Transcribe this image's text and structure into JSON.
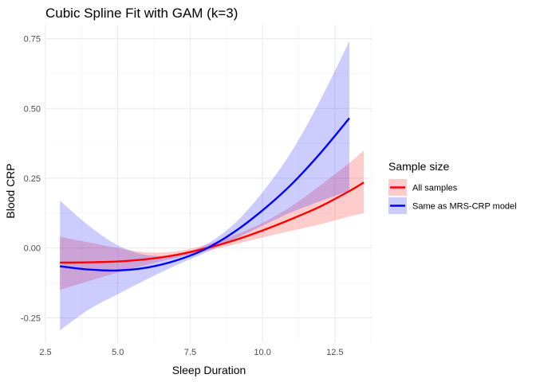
{
  "chart_data": {
    "type": "line",
    "title": "Cubic Spline Fit with GAM (k=3)",
    "xlabel": "Sleep Duration",
    "ylabel": "Blood CRP",
    "xlim": [
      2.5,
      13.8
    ],
    "ylim": [
      -0.34,
      0.8
    ],
    "x_ticks": [
      2.5,
      5.0,
      7.5,
      10.0,
      12.5
    ],
    "x_tick_labels": [
      "2.5",
      "5.0",
      "7.5",
      "10.0",
      "12.5"
    ],
    "y_ticks": [
      -0.25,
      0.0,
      0.25,
      0.5,
      0.75
    ],
    "y_tick_labels": [
      "-0.25",
      "0.00",
      "0.25",
      "0.50",
      "0.75"
    ],
    "grid": true,
    "legend": {
      "title": "Sample size",
      "position": "right"
    },
    "series": [
      {
        "name": "All samples",
        "color": "#ff0000",
        "fill_color": "#ff0000",
        "x": [
          3.0,
          4.0,
          5.0,
          6.0,
          7.0,
          8.0,
          9.0,
          10.0,
          11.0,
          12.0,
          13.0,
          13.5
        ],
        "y": [
          -0.052,
          -0.051,
          -0.048,
          -0.04,
          -0.025,
          -0.002,
          0.027,
          0.063,
          0.104,
          0.149,
          0.204,
          0.235
        ],
        "lower": [
          -0.15,
          -0.118,
          -0.088,
          -0.06,
          -0.035,
          -0.012,
          0.012,
          0.038,
          0.062,
          0.085,
          0.113,
          0.125
        ],
        "upper": [
          0.04,
          0.02,
          0.0,
          -0.015,
          -0.012,
          0.01,
          0.045,
          0.09,
          0.15,
          0.225,
          0.305,
          0.35
        ]
      },
      {
        "name": "Same as MRS-CRP model",
        "color": "#0000ff",
        "fill_color": "#0000ff",
        "x": [
          3.0,
          4.0,
          5.0,
          6.0,
          7.0,
          8.0,
          9.0,
          10.0,
          11.0,
          12.0,
          13.0
        ],
        "y": [
          -0.065,
          -0.077,
          -0.08,
          -0.07,
          -0.045,
          -0.005,
          0.056,
          0.135,
          0.228,
          0.34,
          0.465
        ],
        "lower": [
          -0.295,
          -0.22,
          -0.165,
          -0.112,
          -0.062,
          -0.018,
          0.03,
          0.08,
          0.128,
          0.168,
          0.205
        ],
        "upper": [
          0.17,
          0.08,
          0.01,
          -0.025,
          -0.025,
          0.01,
          0.085,
          0.2,
          0.345,
          0.53,
          0.74
        ]
      }
    ]
  }
}
